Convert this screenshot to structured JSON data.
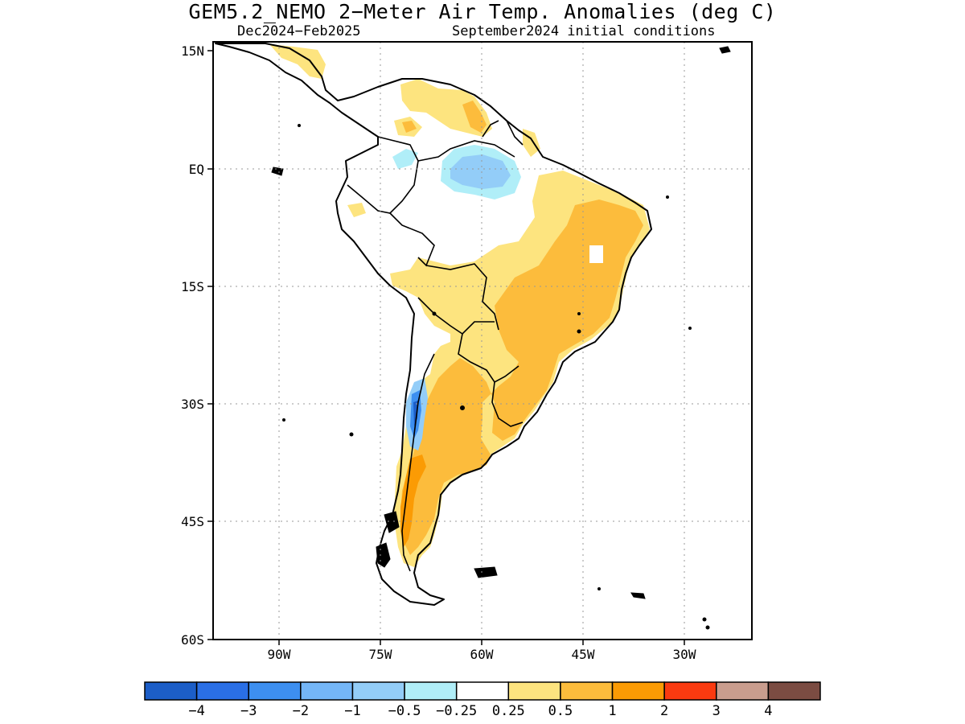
{
  "title": "GEM5.2_NEMO 2−Meter Air Temp. Anomalies (deg C)",
  "subtitle_left": "Dec2024−Feb2025",
  "subtitle_right": "September2024 initial conditions",
  "map": {
    "region": "South America",
    "lat_range": [
      -60,
      15
    ],
    "lon_range": [
      -97,
      -27
    ],
    "lat_ticks": [
      "15N",
      "EQ",
      "15S",
      "30S",
      "45S",
      "60S"
    ],
    "lon_ticks": [
      "90W",
      "75W",
      "60W",
      "45W",
      "30W"
    ],
    "grid": "dotted"
  },
  "colorbar": {
    "colors": [
      "#1c5ec8",
      "#2a6fe6",
      "#3d8ff0",
      "#74b6f7",
      "#93cdf8",
      "#b0eef8",
      "#ffffff",
      "#fde47f",
      "#fcbc3c",
      "#fb9b04",
      "#fa3a10",
      "#c99d8e",
      "#7b4c42"
    ],
    "labels": [
      "−4",
      "−3",
      "−2",
      "−1",
      "−0.5",
      "−0.25",
      "0.25",
      "0.5",
      "1",
      "2",
      "3",
      "4"
    ]
  }
}
